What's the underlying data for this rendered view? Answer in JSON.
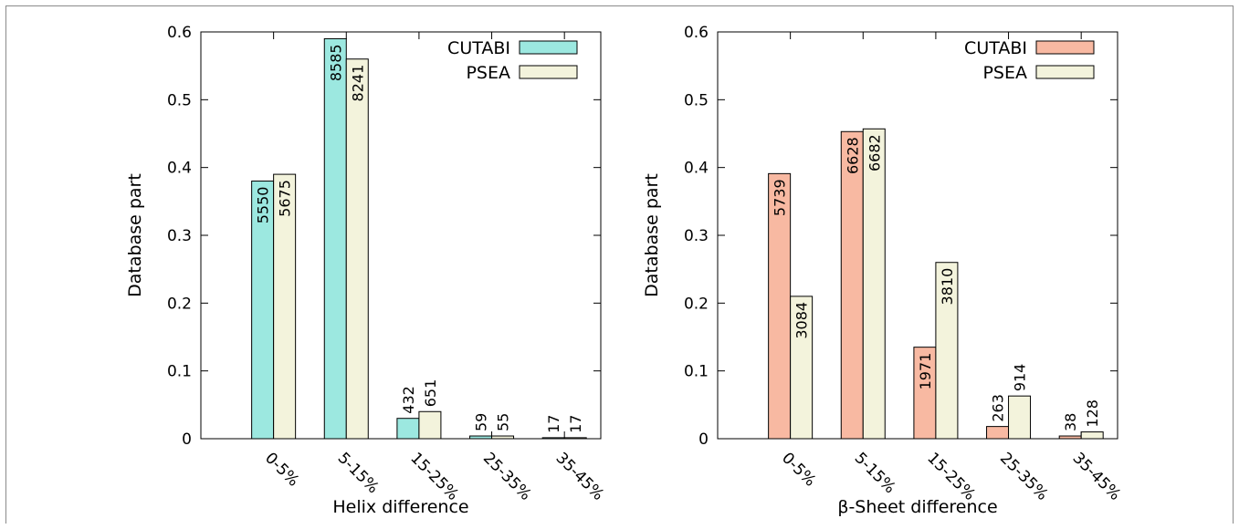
{
  "chart_data": [
    {
      "type": "bar",
      "categories": [
        "0-5%",
        "5-15%",
        "15-25%",
        "25-35%",
        "35-45%"
      ],
      "series": [
        {
          "name": "CUTABI",
          "values": [
            0.38,
            0.59,
            0.03,
            0.004,
            0.0015
          ],
          "labels": [
            "5550",
            "8585",
            "432",
            "59",
            "17"
          ],
          "color": "#9ce8e0"
        },
        {
          "name": "PSEA",
          "values": [
            0.39,
            0.56,
            0.04,
            0.004,
            0.0015
          ],
          "labels": [
            "5675",
            "8241",
            "651",
            "55",
            "17"
          ],
          "color": "#f3f3dc"
        }
      ],
      "xlabel": "Helix difference",
      "ylabel": "Database part",
      "ylim": [
        0,
        0.6
      ],
      "yticks": [
        "0",
        "0.1",
        "0.2",
        "0.3",
        "0.4",
        "0.5",
        "0.6"
      ],
      "legend": "top-right",
      "grid": false
    },
    {
      "type": "bar",
      "categories": [
        "0-5%",
        "5-15%",
        "15-25%",
        "25-35%",
        "35-45%"
      ],
      "series": [
        {
          "name": "CUTABI",
          "values": [
            0.391,
            0.453,
            0.135,
            0.018,
            0.004
          ],
          "labels": [
            "5739",
            "6628",
            "1971",
            "263",
            "38"
          ],
          "color": "#f8b9a2"
        },
        {
          "name": "PSEA",
          "values": [
            0.21,
            0.457,
            0.26,
            0.063,
            0.01
          ],
          "labels": [
            "3084",
            "6682",
            "3810",
            "914",
            "128"
          ],
          "color": "#f3f3dc"
        }
      ],
      "xlabel": "β-Sheet difference",
      "ylabel": "Database part",
      "ylim": [
        0,
        0.6
      ],
      "yticks": [
        "0",
        "0.1",
        "0.2",
        "0.3",
        "0.4",
        "0.5",
        "0.6"
      ],
      "legend": "top-right",
      "grid": false
    }
  ]
}
